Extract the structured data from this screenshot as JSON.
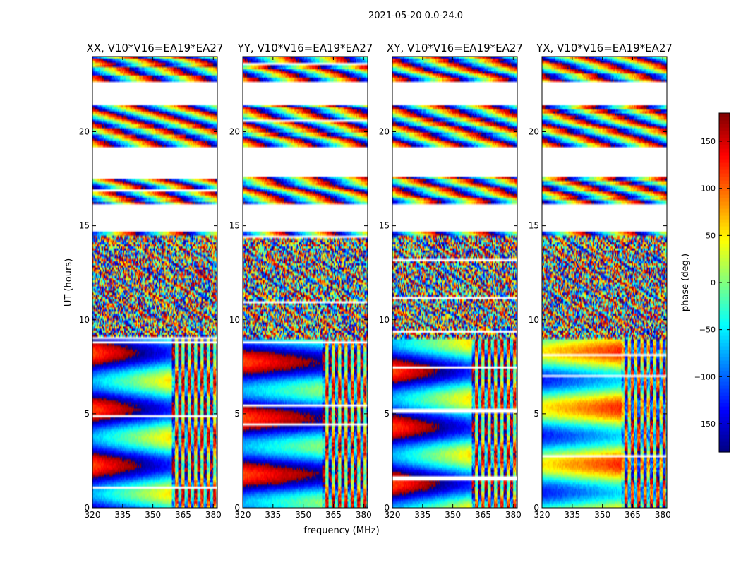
{
  "figure": {
    "suptitle": "2021-05-20 0.0-24.0",
    "xlabel": "frequency (MHz)",
    "ylabel": "UT (hours)"
  },
  "colorbar": {
    "label": "phase (deg.)",
    "range": [
      -180,
      180
    ],
    "ticks": [
      -150,
      -100,
      -50,
      0,
      50,
      100,
      150
    ],
    "tick_labels": [
      "−150",
      "−100",
      "−50",
      "0",
      "50",
      "100",
      "150"
    ],
    "colormap": "jet"
  },
  "chart_data": {
    "type": "heatmap",
    "panels": [
      {
        "title": "XX, V10*V16=EA19*EA27",
        "pol": "XX"
      },
      {
        "title": "YY, V10*V16=EA19*EA27",
        "pol": "YY"
      },
      {
        "title": "XY, V10*V16=EA19*EA27",
        "pol": "XY"
      },
      {
        "title": "YX, V10*V16=EA19*EA27",
        "pol": "YX"
      }
    ],
    "xlim": [
      320,
      382
    ],
    "xticks": [
      320,
      335,
      350,
      365,
      380
    ],
    "ylim": [
      0,
      24
    ],
    "yticks": [
      0,
      5,
      10,
      15,
      20
    ],
    "value_range": [
      -180,
      180
    ],
    "value_label": "phase (deg.)",
    "data_gaps_hours": [
      [
        21.4,
        22.6
      ],
      [
        17.6,
        19.2
      ],
      [
        14.7,
        16.1
      ]
    ]
  }
}
